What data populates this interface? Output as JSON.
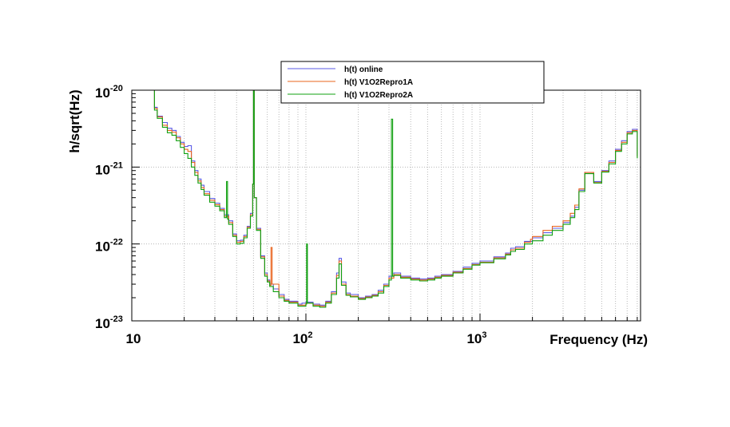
{
  "chart_data": {
    "type": "line",
    "xlabel": "Frequency (Hz)",
    "ylabel": "h/sqrt(Hz)",
    "x_scale": "log",
    "y_scale": "log",
    "xlim": [
      10,
      8000
    ],
    "ylim": [
      1e-23,
      1e-20
    ],
    "grid": true,
    "legend_position": "top",
    "x_ticks": [
      {
        "value": 10,
        "base": "10",
        "exp": ""
      },
      {
        "value": 100,
        "base": "10",
        "exp": "2"
      },
      {
        "value": 1000,
        "base": "10",
        "exp": "3"
      }
    ],
    "y_ticks": [
      {
        "value": 1e-20,
        "base": "10",
        "exp": "-20"
      },
      {
        "value": 1e-21,
        "base": "10",
        "exp": "-21"
      },
      {
        "value": 1e-22,
        "base": "10",
        "exp": "-22"
      },
      {
        "value": 1e-23,
        "base": "10",
        "exp": "-23"
      }
    ],
    "series": [
      {
        "name": "h(t) online",
        "color": "#5a5ae6",
        "points": [
          [
            13,
            1e-20
          ],
          [
            13.5,
            6e-21
          ],
          [
            14,
            4.6e-21
          ],
          [
            15,
            3.8e-21
          ],
          [
            16,
            3.2e-21
          ],
          [
            17,
            3e-21
          ],
          [
            18,
            2.5e-21
          ],
          [
            19,
            2.1e-21
          ],
          [
            20,
            1.85e-21
          ],
          [
            21,
            1.9e-21
          ],
          [
            22,
            1.2e-21
          ],
          [
            23,
            9e-22
          ],
          [
            24,
            7e-22
          ],
          [
            25,
            5.8e-22
          ],
          [
            26,
            4.8e-22
          ],
          [
            28,
            3.9e-22
          ],
          [
            30,
            3.4e-22
          ],
          [
            32,
            2.9e-22
          ],
          [
            34,
            2.4e-22
          ],
          [
            36,
            2e-22
          ],
          [
            38,
            1.35e-22
          ],
          [
            40,
            1.1e-22
          ],
          [
            42,
            1.12e-22
          ],
          [
            44,
            1.3e-22
          ],
          [
            46,
            1.7e-22
          ],
          [
            48,
            2.5e-22
          ],
          [
            49.5,
            6e-22
          ],
          [
            50,
            1.2e-20
          ],
          [
            50.5,
            4e-22
          ],
          [
            52,
            1.6e-22
          ],
          [
            55,
            7e-23
          ],
          [
            58,
            4.2e-23
          ],
          [
            60,
            3.4e-23
          ],
          [
            62,
            3e-23
          ],
          [
            65,
            2.6e-23
          ],
          [
            70,
            2.2e-23
          ],
          [
            75,
            1.9e-23
          ],
          [
            80,
            1.8e-23
          ],
          [
            90,
            1.65e-23
          ],
          [
            95,
            1.7e-23
          ],
          [
            100,
            1.75e-23
          ],
          [
            110,
            1.65e-23
          ],
          [
            120,
            1.6e-23
          ],
          [
            130,
            1.8e-23
          ],
          [
            140,
            2.4e-23
          ],
          [
            150,
            4.2e-23
          ],
          [
            155,
            6.5e-23
          ],
          [
            160,
            3.2e-23
          ],
          [
            170,
            2.3e-23
          ],
          [
            180,
            2.2e-23
          ],
          [
            200,
            2e-23
          ],
          [
            220,
            2.1e-23
          ],
          [
            240,
            2.2e-23
          ],
          [
            260,
            2.5e-23
          ],
          [
            280,
            3e-23
          ],
          [
            300,
            3.8e-23
          ],
          [
            320,
            4.2e-23
          ],
          [
            350,
            3.8e-23
          ],
          [
            400,
            3.6e-23
          ],
          [
            450,
            3.5e-23
          ],
          [
            500,
            3.6e-23
          ],
          [
            550,
            3.8e-23
          ],
          [
            600,
            4e-23
          ],
          [
            700,
            4.4e-23
          ],
          [
            800,
            5e-23
          ],
          [
            900,
            5.6e-23
          ],
          [
            1000,
            6e-23
          ],
          [
            1200,
            6.8e-23
          ],
          [
            1400,
            7.6e-23
          ],
          [
            1500,
            8.8e-23
          ],
          [
            1600,
            9.2e-23
          ],
          [
            1800,
            1.08e-22
          ],
          [
            2000,
            1.2e-22
          ],
          [
            2300,
            1.4e-22
          ],
          [
            2600,
            1.6e-22
          ],
          [
            3000,
            1.9e-22
          ],
          [
            3300,
            2.3e-22
          ],
          [
            3500,
            3e-22
          ],
          [
            3700,
            5e-22
          ],
          [
            4000,
            8.5e-22
          ],
          [
            4500,
            6.5e-22
          ],
          [
            5000,
            9e-22
          ],
          [
            5500,
            1.2e-21
          ],
          [
            6000,
            1.7e-21
          ],
          [
            6500,
            2.2e-21
          ],
          [
            7000,
            2.9e-21
          ],
          [
            7500,
            3.1e-21
          ],
          [
            8000,
            1.4e-21
          ]
        ]
      },
      {
        "name": "h(t) V1O2Repro1A",
        "color": "#e8641e",
        "points": [
          [
            13,
            1e-20
          ],
          [
            13.5,
            5.8e-21
          ],
          [
            14,
            4.5e-21
          ],
          [
            15,
            3.5e-21
          ],
          [
            16,
            3e-21
          ],
          [
            17,
            2.85e-21
          ],
          [
            18,
            2.4e-21
          ],
          [
            19,
            2e-21
          ],
          [
            20,
            1.7e-21
          ],
          [
            21,
            1.6e-21
          ],
          [
            22,
            1.15e-21
          ],
          [
            23,
            8.5e-22
          ],
          [
            24,
            6.6e-22
          ],
          [
            25,
            5.4e-22
          ],
          [
            26,
            4.5e-22
          ],
          [
            28,
            3.7e-22
          ],
          [
            30,
            3.25e-22
          ],
          [
            32,
            2.8e-22
          ],
          [
            34,
            2.3e-22
          ],
          [
            36,
            1.9e-22
          ],
          [
            38,
            1.3e-22
          ],
          [
            40,
            1.05e-22
          ],
          [
            42,
            1.08e-22
          ],
          [
            44,
            1.25e-22
          ],
          [
            46,
            1.65e-22
          ],
          [
            48,
            2.4e-22
          ],
          [
            49.5,
            6e-22
          ],
          [
            50,
            1.2e-20
          ],
          [
            50.5,
            4e-22
          ],
          [
            52,
            1.55e-22
          ],
          [
            55,
            6.8e-23
          ],
          [
            58,
            4e-23
          ],
          [
            60,
            3.3e-23
          ],
          [
            62,
            2.9e-23
          ],
          [
            63,
            9e-23
          ],
          [
            64,
            3e-23
          ],
          [
            70,
            2.1e-23
          ],
          [
            75,
            1.85e-23
          ],
          [
            80,
            1.75e-23
          ],
          [
            90,
            1.6e-23
          ],
          [
            100,
            1.7e-23
          ],
          [
            110,
            1.6e-23
          ],
          [
            120,
            1.55e-23
          ],
          [
            130,
            1.75e-23
          ],
          [
            140,
            2.3e-23
          ],
          [
            150,
            3.9e-23
          ],
          [
            155,
            6e-23
          ],
          [
            160,
            3e-23
          ],
          [
            170,
            2.2e-23
          ],
          [
            180,
            2.1e-23
          ],
          [
            200,
            1.95e-23
          ],
          [
            220,
            2.05e-23
          ],
          [
            240,
            2.15e-23
          ],
          [
            260,
            2.4e-23
          ],
          [
            280,
            2.9e-23
          ],
          [
            300,
            3.6e-23
          ],
          [
            320,
            4e-23
          ],
          [
            350,
            3.7e-23
          ],
          [
            400,
            3.5e-23
          ],
          [
            450,
            3.4e-23
          ],
          [
            500,
            3.5e-23
          ],
          [
            550,
            3.7e-23
          ],
          [
            600,
            3.9e-23
          ],
          [
            700,
            4.3e-23
          ],
          [
            800,
            4.8e-23
          ],
          [
            900,
            5.4e-23
          ],
          [
            1000,
            5.8e-23
          ],
          [
            1200,
            6.6e-23
          ],
          [
            1400,
            7.4e-23
          ],
          [
            1500,
            8.4e-23
          ],
          [
            1600,
            8.8e-23
          ],
          [
            1800,
            1.05e-22
          ],
          [
            1950,
            1.15e-22
          ],
          [
            2000,
            1.25e-22
          ],
          [
            2300,
            1.5e-22
          ],
          [
            2600,
            1.7e-22
          ],
          [
            3000,
            2e-22
          ],
          [
            3300,
            2.5e-22
          ],
          [
            3500,
            3.2e-22
          ],
          [
            3700,
            5.2e-22
          ],
          [
            4000,
            8.5e-22
          ],
          [
            4500,
            6.3e-22
          ],
          [
            5000,
            8.8e-22
          ],
          [
            5500,
            1.15e-21
          ],
          [
            6000,
            1.65e-21
          ],
          [
            6500,
            2.1e-21
          ],
          [
            7000,
            2.8e-21
          ],
          [
            7500,
            3e-21
          ],
          [
            8000,
            1.35e-21
          ]
        ]
      },
      {
        "name": "h(t) V1O2Repro2A",
        "color": "#10a010",
        "points": [
          [
            13,
            1e-20
          ],
          [
            13.5,
            5.5e-21
          ],
          [
            14,
            4.3e-21
          ],
          [
            15,
            3.3e-21
          ],
          [
            16,
            2.8e-21
          ],
          [
            17,
            2.6e-21
          ],
          [
            18,
            2.2e-21
          ],
          [
            19,
            1.8e-21
          ],
          [
            20,
            1.5e-21
          ],
          [
            21,
            1.3e-21
          ],
          [
            22,
            1e-21
          ],
          [
            23,
            7.8e-22
          ],
          [
            24,
            6.2e-22
          ],
          [
            25,
            5.1e-22
          ],
          [
            26,
            4.3e-22
          ],
          [
            28,
            3.5e-22
          ],
          [
            30,
            3.1e-22
          ],
          [
            32,
            2.7e-22
          ],
          [
            34,
            2.2e-22
          ],
          [
            35,
            6.5e-22
          ],
          [
            35.5,
            2.1e-22
          ],
          [
            36,
            1.8e-22
          ],
          [
            38,
            1.25e-22
          ],
          [
            40,
            1e-22
          ],
          [
            42,
            1.02e-22
          ],
          [
            44,
            1.2e-22
          ],
          [
            46,
            1.6e-22
          ],
          [
            48,
            2.3e-22
          ],
          [
            49.5,
            6e-22
          ],
          [
            50,
            1.2e-20
          ],
          [
            50.5,
            4e-22
          ],
          [
            52,
            1.5e-22
          ],
          [
            55,
            6.5e-23
          ],
          [
            58,
            3.8e-23
          ],
          [
            60,
            3.2e-23
          ],
          [
            62,
            2.8e-23
          ],
          [
            65,
            2.4e-23
          ],
          [
            70,
            2e-23
          ],
          [
            75,
            1.8e-23
          ],
          [
            80,
            1.7e-23
          ],
          [
            90,
            1.55e-23
          ],
          [
            100,
            1.65e-23
          ],
          [
            101,
            1e-22
          ],
          [
            102,
            1.7e-23
          ],
          [
            110,
            1.55e-23
          ],
          [
            120,
            1.5e-23
          ],
          [
            130,
            1.7e-23
          ],
          [
            140,
            2.2e-23
          ],
          [
            150,
            3.6e-23
          ],
          [
            155,
            5.5e-23
          ],
          [
            160,
            2.9e-23
          ],
          [
            170,
            2.15e-23
          ],
          [
            180,
            2.05e-23
          ],
          [
            200,
            1.9e-23
          ],
          [
            220,
            2e-23
          ],
          [
            240,
            2.1e-23
          ],
          [
            260,
            2.3e-23
          ],
          [
            280,
            2.8e-23
          ],
          [
            300,
            3.4e-23
          ],
          [
            310,
            4.2e-21
          ],
          [
            315,
            3.8e-23
          ],
          [
            320,
            3.9e-23
          ],
          [
            350,
            3.6e-23
          ],
          [
            400,
            3.4e-23
          ],
          [
            450,
            3.3e-23
          ],
          [
            500,
            3.4e-23
          ],
          [
            550,
            3.6e-23
          ],
          [
            600,
            3.8e-23
          ],
          [
            700,
            4.2e-23
          ],
          [
            800,
            4.7e-23
          ],
          [
            900,
            5.3e-23
          ],
          [
            1000,
            5.7e-23
          ],
          [
            1200,
            6.4e-23
          ],
          [
            1400,
            7.2e-23
          ],
          [
            1500,
            8e-23
          ],
          [
            1600,
            8.5e-23
          ],
          [
            1800,
            1e-22
          ],
          [
            2000,
            1.1e-22
          ],
          [
            2300,
            1.3e-22
          ],
          [
            2600,
            1.5e-22
          ],
          [
            3000,
            1.8e-22
          ],
          [
            3300,
            2.2e-22
          ],
          [
            3500,
            2.8e-22
          ],
          [
            3700,
            4.8e-22
          ],
          [
            4000,
            8.2e-22
          ],
          [
            4500,
            6.2e-22
          ],
          [
            5000,
            8.6e-22
          ],
          [
            5500,
            1.1e-21
          ],
          [
            6000,
            1.6e-21
          ],
          [
            6500,
            2e-21
          ],
          [
            7000,
            2.7e-21
          ],
          [
            7500,
            2.9e-21
          ],
          [
            8000,
            1.3e-21
          ]
        ]
      }
    ]
  }
}
